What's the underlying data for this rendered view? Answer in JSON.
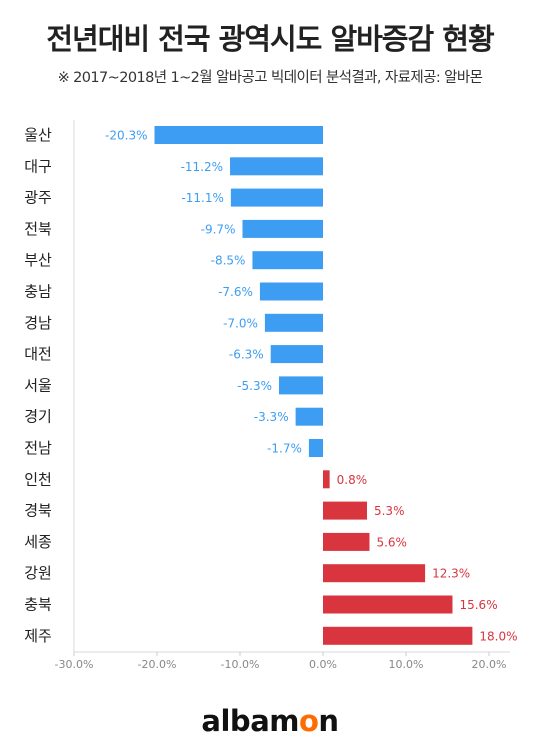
{
  "chart_data": {
    "type": "bar",
    "orientation": "horizontal",
    "title": "전년대비 전국 광역시도 알바증감 현황",
    "subtitle": "※ 2017~2018년 1~2월 알바공고 빅데이터 분석결과,  자료제공: 알바몬",
    "categories": [
      "울산",
      "대구",
      "광주",
      "전북",
      "부산",
      "충남",
      "경남",
      "대전",
      "서울",
      "경기",
      "전남",
      "인천",
      "경북",
      "세종",
      "강원",
      "충북",
      "제주"
    ],
    "values": [
      -20.3,
      -11.2,
      -11.1,
      -9.7,
      -8.5,
      -7.6,
      -7.0,
      -6.3,
      -5.3,
      -3.3,
      -1.7,
      0.8,
      5.3,
      5.6,
      12.3,
      15.6,
      18.0
    ],
    "data_labels": [
      "-20.3%",
      "-11.2%",
      "-11.1%",
      "-9.7%",
      "-8.5%",
      "-7.6%",
      "-7.0%",
      "-6.3%",
      "-5.3%",
      "-3.3%",
      "-1.7%",
      "0.8%",
      "5.3%",
      "5.6%",
      "12.3%",
      "15.6%",
      "18.0%"
    ],
    "xlim": [
      -30,
      20
    ],
    "xticks": [
      -30,
      -20,
      -10,
      0,
      10,
      20
    ],
    "xtick_labels": [
      "-30.0%",
      "-20.0%",
      "-10.0%",
      "0.0%",
      "10.0%",
      "20.0%"
    ],
    "grid": false,
    "colors": {
      "negative": "#3d9df3",
      "positive": "#d9353f"
    }
  },
  "logo": {
    "prefix": "albam",
    "o": "o",
    "suffix": "n"
  }
}
